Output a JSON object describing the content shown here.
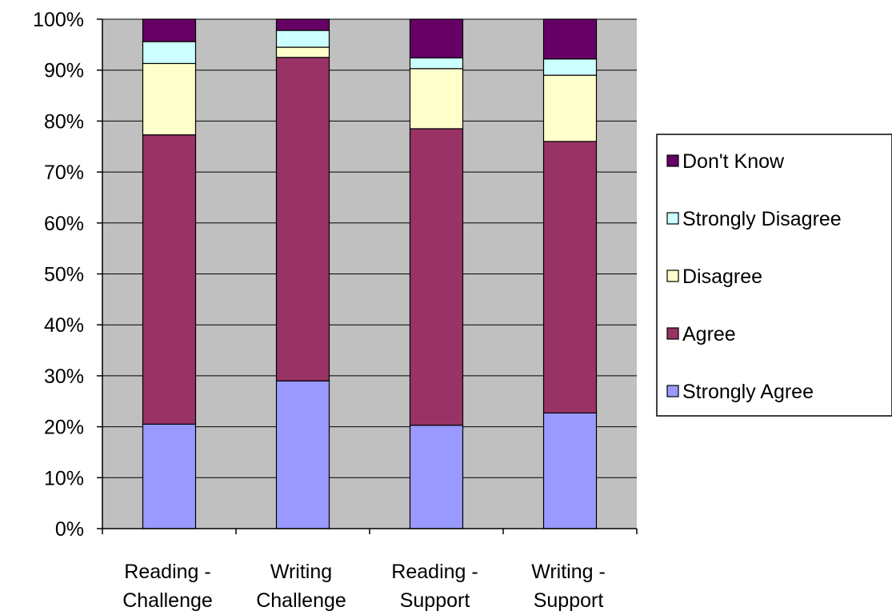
{
  "chart_data": {
    "type": "bar",
    "stacked": true,
    "percent": true,
    "categories": [
      [
        "Reading -",
        "Challenge"
      ],
      [
        "Writing",
        "Challenge"
      ],
      [
        "Reading -",
        "Support"
      ],
      [
        "Writing -",
        "Support"
      ]
    ],
    "series": [
      {
        "name": "Strongly Agree",
        "color": "#9999ff",
        "values": [
          20.5,
          29.0,
          20.3,
          22.7
        ]
      },
      {
        "name": "Agree",
        "color": "#993366",
        "values": [
          56.8,
          63.5,
          58.2,
          53.3
        ]
      },
      {
        "name": "Disagree",
        "color": "#ffffcc",
        "values": [
          14.0,
          2.0,
          11.8,
          13.0
        ]
      },
      {
        "name": "Strongly Disagree",
        "color": "#ccffff",
        "values": [
          4.3,
          3.3,
          2.1,
          3.2
        ]
      },
      {
        "name": "Don't Know",
        "color": "#660066",
        "values": [
          4.4,
          2.2,
          7.6,
          7.8
        ]
      }
    ],
    "legend_order": [
      "Don't Know",
      "Strongly Disagree",
      "Disagree",
      "Agree",
      "Strongly Agree"
    ],
    "yticks": [
      "0%",
      "10%",
      "20%",
      "30%",
      "40%",
      "50%",
      "60%",
      "70%",
      "80%",
      "90%",
      "100%"
    ],
    "ylim": [
      0,
      100
    ],
    "grid": true,
    "legend_position": "right",
    "plot_background": "#c0c0c0",
    "title": "",
    "xlabel": "",
    "ylabel": ""
  }
}
